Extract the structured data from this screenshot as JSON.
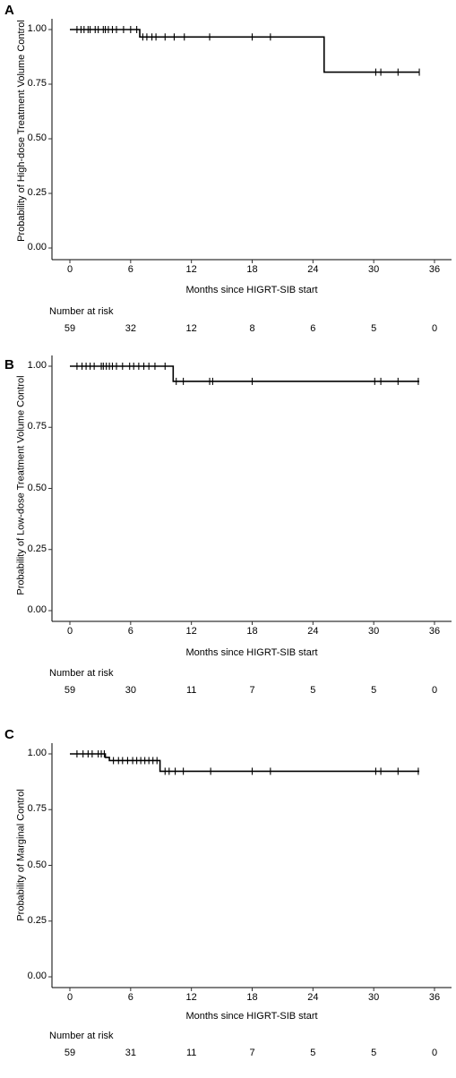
{
  "chart_data": [
    {
      "type": "line",
      "panel_label": "A",
      "ylabel": "Probability of High-dose Treatment Volume Control",
      "xlabel": "Months since HIGRT-SIB start",
      "xlim": [
        0,
        36
      ],
      "ylim": [
        0,
        1
      ],
      "x_ticks": [
        0,
        6,
        12,
        18,
        24,
        30,
        36
      ],
      "y_tick_labels": [
        "0.00",
        "0.25",
        "0.50",
        "0.75",
        "1.00"
      ],
      "y_ticks": [
        0,
        0.25,
        0.5,
        0.75,
        1.0
      ],
      "steps": [
        [
          0,
          1.0
        ],
        [
          6.9,
          0.966
        ],
        [
          25.1,
          0.805
        ],
        [
          34.5,
          0.805
        ]
      ],
      "censor_times": [
        0.7,
        1.1,
        1.4,
        1.8,
        2.0,
        2.5,
        2.8,
        3.3,
        3.5,
        3.8,
        4.2,
        4.6,
        5.3,
        6.0,
        6.6,
        7.2,
        7.6,
        8.1,
        8.5,
        9.4,
        10.3,
        11.3,
        13.8,
        18.0,
        19.8,
        30.2,
        30.7,
        32.4,
        34.5
      ],
      "risk_table_title": "Number at risk",
      "risk_at_ticks": [
        "59",
        "32",
        "12",
        "8",
        "6",
        "5",
        "0"
      ]
    },
    {
      "type": "line",
      "panel_label": "B",
      "ylabel": "Probability of Low-dose Treatment Volume Control",
      "xlabel": "Months since HIGRT-SIB start",
      "xlim": [
        0,
        36
      ],
      "ylim": [
        0,
        1
      ],
      "x_ticks": [
        0,
        6,
        12,
        18,
        24,
        30,
        36
      ],
      "y_tick_labels": [
        "0.00",
        "0.25",
        "0.50",
        "0.75",
        "1.00"
      ],
      "y_ticks": [
        0,
        0.25,
        0.5,
        0.75,
        1.0
      ],
      "steps": [
        [
          0,
          1.0
        ],
        [
          10.2,
          0.938
        ],
        [
          34.5,
          0.938
        ]
      ],
      "censor_times": [
        0.7,
        1.2,
        1.6,
        2.0,
        2.4,
        3.1,
        3.3,
        3.6,
        3.9,
        4.2,
        4.6,
        5.2,
        5.9,
        6.3,
        6.8,
        7.3,
        7.8,
        8.4,
        9.4,
        10.5,
        11.2,
        13.8,
        14.1,
        18.0,
        30.1,
        30.7,
        32.4,
        34.4
      ],
      "risk_table_title": "Number at risk",
      "risk_at_ticks": [
        "59",
        "30",
        "11",
        "7",
        "5",
        "5",
        "0"
      ]
    },
    {
      "type": "line",
      "panel_label": "C",
      "ylabel": "Probability of Marginal Control",
      "xlabel": "Months since HIGRT-SIB start",
      "xlim": [
        0,
        36
      ],
      "ylim": [
        0,
        1
      ],
      "x_ticks": [
        0,
        6,
        12,
        18,
        24,
        30,
        36
      ],
      "y_tick_labels": [
        "0.00",
        "0.25",
        "0.50",
        "0.75",
        "1.00"
      ],
      "y_ticks": [
        0,
        0.25,
        0.5,
        0.75,
        1.0
      ],
      "steps": [
        [
          0,
          1.0
        ],
        [
          3.5,
          0.984
        ],
        [
          3.9,
          0.97
        ],
        [
          8.9,
          0.922
        ],
        [
          34.5,
          0.922
        ]
      ],
      "censor_times": [
        0.7,
        1.3,
        1.8,
        2.2,
        2.8,
        3.1,
        3.4,
        4.3,
        4.8,
        5.2,
        5.7,
        6.2,
        6.6,
        7.0,
        7.4,
        7.8,
        8.2,
        8.6,
        9.4,
        9.8,
        10.4,
        11.2,
        13.9,
        18.0,
        19.8,
        30.2,
        30.7,
        32.4,
        34.4
      ],
      "risk_table_title": "Number at risk",
      "risk_at_ticks": [
        "59",
        "31",
        "11",
        "7",
        "5",
        "5",
        "0"
      ]
    }
  ]
}
